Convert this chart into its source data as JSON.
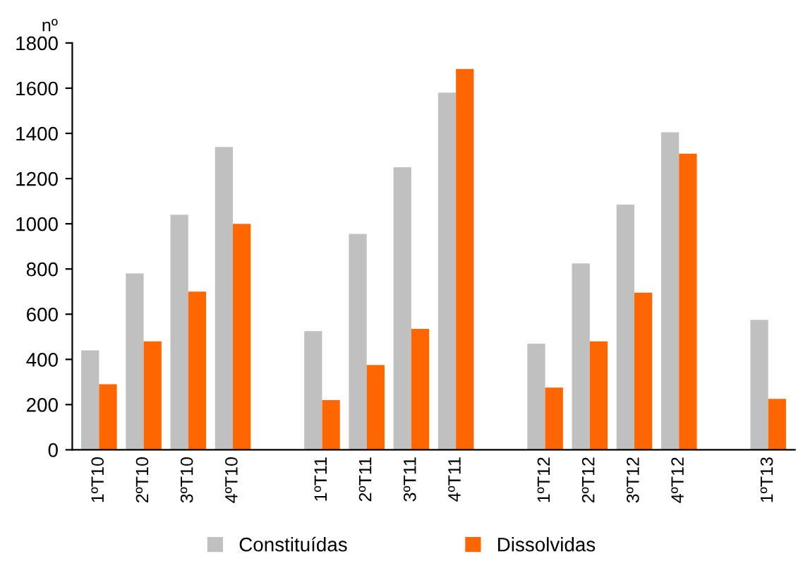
{
  "chart_data": {
    "type": "bar",
    "ylabel": "nº",
    "categories": [
      "1ºT10",
      "2ºT10",
      "3ºT10",
      "4ºT10",
      null,
      "1ºT11",
      "2ºT11",
      "3ºT11",
      "4ºT11",
      null,
      "1ºT12",
      "2ºT12",
      "3ºT12",
      "4ºT12",
      null,
      "1ºT13"
    ],
    "series": [
      {
        "name": "Constituídas",
        "color": "#c0c0c0",
        "values": [
          440,
          780,
          1040,
          1340,
          null,
          525,
          955,
          1250,
          1580,
          null,
          470,
          825,
          1085,
          1405,
          null,
          575
        ]
      },
      {
        "name": "Dissolvidas",
        "color": "#ff6600",
        "values": [
          290,
          480,
          700,
          1000,
          null,
          220,
          375,
          535,
          1685,
          null,
          275,
          480,
          695,
          1310,
          null,
          225
        ]
      }
    ],
    "ylim": [
      0,
      1800
    ],
    "yticks": [
      0,
      200,
      400,
      600,
      800,
      1000,
      1200,
      1400,
      1600,
      1800
    ],
    "grid": false,
    "legend": "bottom"
  }
}
